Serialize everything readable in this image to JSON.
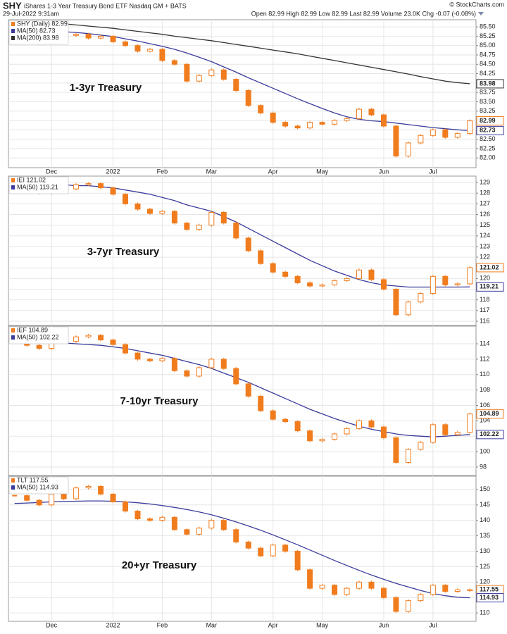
{
  "header": {
    "symbol": "SHY",
    "description": "iShares 1-3 Year Treasury Bond ETF  Nasdaq GM + BATS",
    "date": "29-Jul-2022 9:31am",
    "quote": "Open 82.99  High 82.99  Low 82.99  Last 82.99  Volume 23.0K  Chg -0.07 (-0.08%)",
    "copyright": "© StockCharts.com"
  },
  "chart_data": [
    {
      "type": "candlestick",
      "annotation": "1-3yr Treasury",
      "categories": [
        null,
        null,
        null,
        "Dec",
        null,
        null,
        null,
        null,
        "2022",
        null,
        null,
        null,
        "Feb",
        null,
        null,
        null,
        "Mar",
        null,
        null,
        null,
        null,
        "Apr",
        null,
        null,
        null,
        "May",
        null,
        null,
        null,
        null,
        "Jun",
        null,
        null,
        null,
        "Jul",
        null,
        null,
        null
      ],
      "ylim": [
        81.74,
        85.69
      ],
      "yticks": [
        {
          "value": 82,
          "label": "82.00"
        },
        {
          "value": 82.25,
          "label": "82.25"
        },
        {
          "value": 82.5,
          "label": "82.50"
        },
        {
          "value": 82.75,
          "label": "82.75"
        },
        {
          "value": 83,
          "label": "83.00"
        },
        {
          "value": 83.25,
          "label": "83.25"
        },
        {
          "value": 83.5,
          "label": "83.50"
        },
        {
          "value": 83.75,
          "label": "83.75"
        },
        {
          "value": 84,
          "label": "84.00"
        },
        {
          "value": 84.25,
          "label": "84.25"
        },
        {
          "value": 84.5,
          "label": "84.50"
        },
        {
          "value": 84.75,
          "label": "84.75"
        },
        {
          "value": 85,
          "label": "85.00"
        },
        {
          "value": 85.25,
          "label": "85.25"
        },
        {
          "value": 85.5,
          "label": "85.50"
        }
      ],
      "grid": true,
      "series": [
        {
          "name": "SHY (Daily) 82.99",
          "style": "candles",
          "color": "#f07c1e",
          "flag": "82.99",
          "values": [
            85.4,
            85.35,
            85.38,
            85.3,
            85.28,
            85.3,
            85.2,
            85.25,
            85.1,
            85.0,
            84.85,
            84.9,
            84.6,
            84.5,
            84.05,
            84.2,
            84.35,
            84.1,
            83.8,
            83.4,
            83.2,
            82.95,
            82.85,
            82.8,
            82.95,
            82.9,
            83.0,
            83.05,
            83.3,
            83.15,
            82.85,
            82.05,
            82.4,
            82.6,
            82.75,
            82.55,
            82.65,
            82.99
          ]
        },
        {
          "name": "MA(50) 82.73",
          "style": "line",
          "color": "#3b3b9c",
          "flag": "82.73",
          "values": [
            85.42,
            85.41,
            85.4,
            85.39,
            85.37,
            85.35,
            85.32,
            85.28,
            85.24,
            85.18,
            85.12,
            85.05,
            84.98,
            84.9,
            84.8,
            84.69,
            84.57,
            84.43,
            84.29,
            84.14,
            84.0,
            83.86,
            83.72,
            83.58,
            83.45,
            83.32,
            83.2,
            83.1,
            83.03,
            82.99,
            82.97,
            82.93,
            82.89,
            82.85,
            82.81,
            82.78,
            82.75,
            82.73
          ]
        },
        {
          "name": "MA(200) 83.98",
          "style": "line",
          "color": "#333333",
          "flag": "83.98",
          "values": [
            85.66,
            85.64,
            85.62,
            85.6,
            85.58,
            85.55,
            85.52,
            85.49,
            85.46,
            85.42,
            85.38,
            85.34,
            85.3,
            85.25,
            85.21,
            85.17,
            85.13,
            85.08,
            85.03,
            84.98,
            84.93,
            84.88,
            84.83,
            84.78,
            84.72,
            84.66,
            84.6,
            84.54,
            84.48,
            84.42,
            84.36,
            84.3,
            84.24,
            84.17,
            84.11,
            84.05,
            84.01,
            83.98
          ]
        }
      ]
    },
    {
      "type": "candlestick",
      "annotation": "3-7yr Treasury",
      "ylim": [
        115.6,
        129.6
      ],
      "yticks": [
        116,
        117,
        118,
        119,
        120,
        121,
        122,
        123,
        124,
        125,
        126,
        127,
        128,
        129
      ],
      "grid": true,
      "series": [
        {
          "name": "IEI 121.02",
          "style": "candles",
          "color": "#f07c1e",
          "flag": "121.02",
          "values": [
            128.5,
            128.3,
            128.0,
            128.6,
            128.4,
            128.8,
            128.9,
            128.5,
            127.9,
            127.0,
            126.5,
            126.1,
            126.3,
            125.2,
            124.6,
            125.0,
            126.2,
            125.2,
            123.8,
            122.6,
            121.4,
            120.6,
            120.2,
            119.6,
            119.3,
            119.4,
            119.8,
            120.0,
            120.8,
            119.9,
            119.0,
            116.6,
            117.8,
            118.6,
            120.2,
            119.4,
            119.5,
            121.02
          ]
        },
        {
          "name": "MA(50) 119.21",
          "style": "line",
          "color": "#3b3b9c",
          "flag": "119.21",
          "values": [
            128.9,
            128.9,
            128.9,
            128.8,
            128.8,
            128.7,
            128.7,
            128.6,
            128.5,
            128.3,
            128.1,
            127.9,
            127.6,
            127.3,
            126.9,
            126.6,
            126.3,
            125.8,
            125.3,
            124.7,
            124.1,
            123.5,
            122.9,
            122.3,
            121.7,
            121.2,
            120.7,
            120.3,
            119.9,
            119.6,
            119.4,
            119.3,
            119.2,
            119.2,
            119.2,
            119.2,
            119.2,
            119.21
          ]
        }
      ]
    },
    {
      "type": "candlestick",
      "annotation": "7-10yr Treasury",
      "ylim": [
        96.9,
        116.29
      ],
      "yticks": [
        98,
        100,
        102,
        104,
        106,
        108,
        110,
        112,
        114
      ],
      "grid": true,
      "series": [
        {
          "name": "IEF 104.89",
          "style": "candles",
          "color": "#f07c1e",
          "flag": "104.89",
          "values": [
            114.2,
            113.8,
            113.4,
            114.6,
            114.3,
            114.9,
            115.1,
            114.5,
            113.9,
            112.8,
            112.0,
            111.8,
            112.1,
            110.5,
            109.8,
            110.9,
            112.0,
            110.8,
            108.8,
            107.2,
            105.3,
            104.2,
            103.9,
            102.7,
            101.4,
            101.6,
            102.3,
            103.0,
            104.0,
            103.2,
            101.8,
            98.6,
            100.3,
            101.2,
            103.5,
            102.2,
            102.5,
            104.89
          ]
        },
        {
          "name": "MA(50) 102.22",
          "style": "line",
          "color": "#3b3b9c",
          "flag": "102.22",
          "values": [
            114.5,
            114.4,
            114.3,
            114.2,
            114.1,
            114.0,
            113.9,
            113.8,
            113.6,
            113.4,
            113.1,
            112.8,
            112.5,
            112.1,
            111.7,
            111.3,
            110.8,
            110.2,
            109.6,
            109.0,
            108.3,
            107.6,
            106.9,
            106.2,
            105.5,
            104.9,
            104.3,
            103.8,
            103.3,
            102.9,
            102.6,
            102.3,
            102.1,
            102.0,
            101.9,
            102.0,
            102.1,
            102.22
          ]
        }
      ]
    },
    {
      "type": "candlestick",
      "annotation": "20+yr Treasury",
      "categories": [
        null,
        null,
        null,
        "Dec",
        null,
        null,
        null,
        null,
        "2022",
        null,
        null,
        null,
        "Feb",
        null,
        null,
        null,
        "Mar",
        null,
        null,
        null,
        null,
        "Apr",
        null,
        null,
        null,
        "May",
        null,
        null,
        null,
        null,
        "Jun",
        null,
        null,
        null,
        "Jul",
        null,
        null,
        null
      ],
      "ylim": [
        107.3,
        154.3
      ],
      "yticks": [
        110,
        115,
        120,
        125,
        130,
        135,
        140,
        145,
        150
      ],
      "grid": true,
      "series": [
        {
          "name": "TLT 117.55",
          "style": "candles",
          "color": "#f07c1e",
          "flag": "117.55",
          "values": [
            148,
            146.5,
            145,
            148.5,
            147,
            150.5,
            151,
            148.5,
            146,
            143,
            140.5,
            140,
            141,
            137,
            135.5,
            137.5,
            140,
            137,
            133,
            131,
            128.5,
            132,
            130,
            124,
            118,
            119,
            116,
            118,
            120,
            118,
            115,
            110.5,
            114,
            116,
            119,
            117,
            117.5,
            117.55
          ]
        },
        {
          "name": "MA(50) 114.93",
          "style": "line",
          "color": "#3b3b9c",
          "flag": "114.93",
          "values": [
            145.5,
            145.6,
            145.8,
            146.0,
            146.1,
            146.2,
            146.3,
            146.3,
            146.2,
            146.0,
            145.7,
            145.3,
            144.8,
            144.2,
            143.5,
            142.7,
            141.8,
            140.7,
            139.5,
            138.2,
            136.8,
            135.3,
            133.7,
            132.1,
            130.4,
            128.7,
            127.0,
            125.4,
            123.8,
            122.3,
            120.9,
            119.6,
            118.4,
            117.3,
            116.3,
            115.6,
            115.1,
            114.93
          ]
        }
      ]
    }
  ]
}
